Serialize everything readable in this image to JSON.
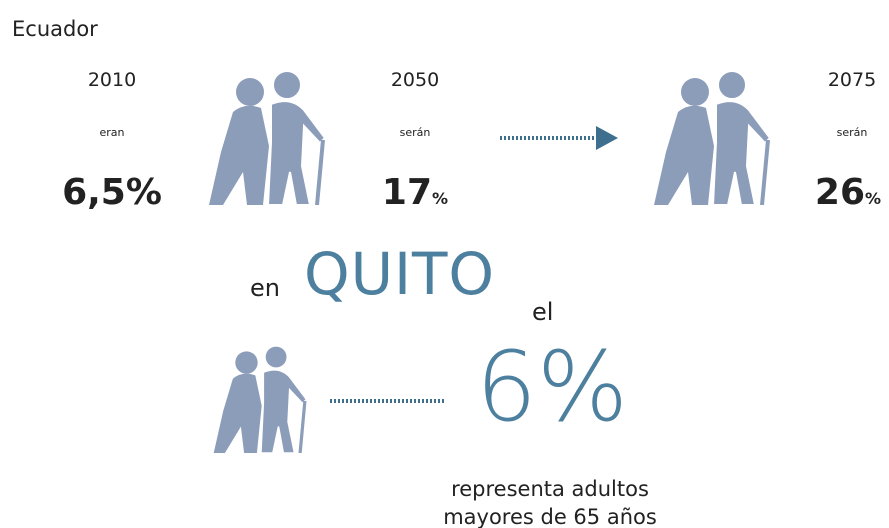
{
  "title": "Ecuador",
  "ecuador": [
    {
      "year": "2010",
      "verb": "eran",
      "value": "6,5",
      "unit": "%"
    },
    {
      "year": "2050",
      "verb": "serán",
      "value": "17",
      "unit": "%"
    },
    {
      "year": "2075",
      "verb": "serán",
      "value": "26",
      "unit": "%"
    }
  ],
  "quito": {
    "prefix": "en",
    "city": "QUITO",
    "article": "el",
    "value": "6",
    "unit": "%",
    "caption": [
      "representa adultos",
      "mayores de 65 años"
    ]
  }
}
